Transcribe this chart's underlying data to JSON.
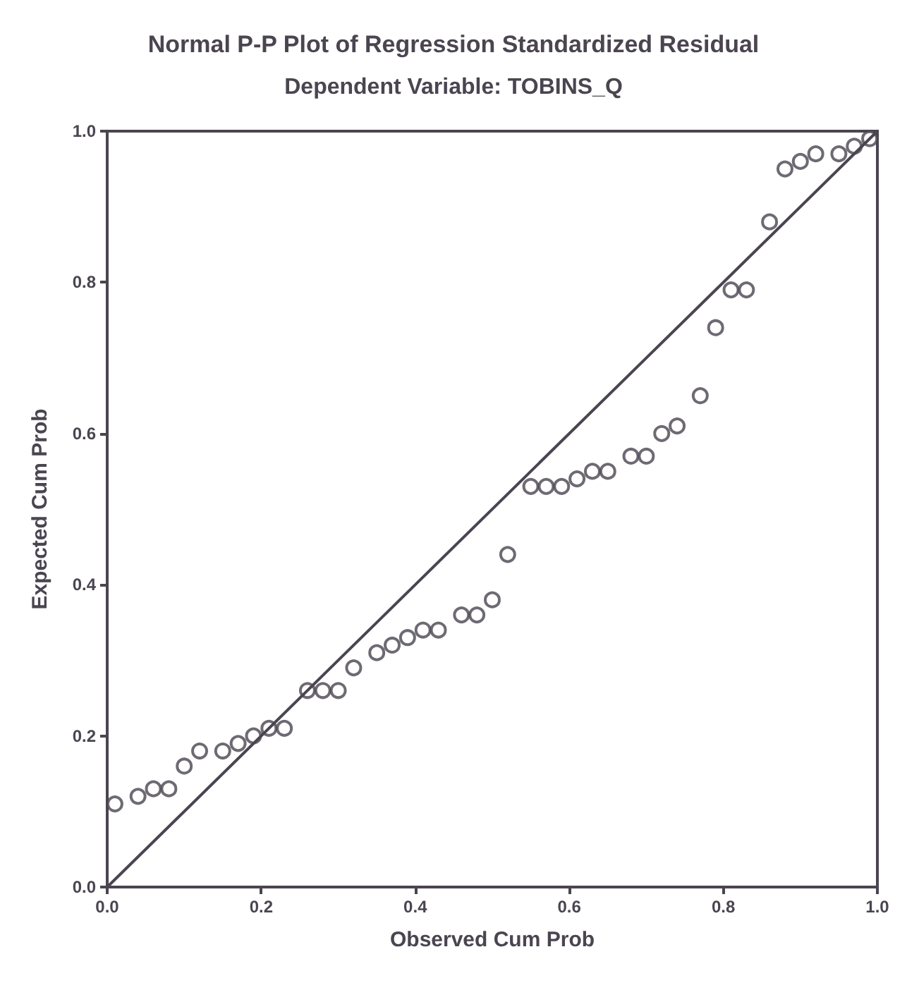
{
  "chart_data": {
    "type": "scatter",
    "title": "Normal P-P Plot of Regression Standardized Residual",
    "subtitle": "Dependent Variable: TOBINS_Q",
    "xlabel": "Observed Cum Prob",
    "ylabel": "Expected Cum Prob",
    "xlim": [
      0,
      1
    ],
    "ylim": [
      0,
      1
    ],
    "xticks": [
      {
        "value": 0,
        "label": "0.0"
      },
      {
        "value": 0.2,
        "label": "0.2"
      },
      {
        "value": 0.4,
        "label": "0.4"
      },
      {
        "value": 0.6,
        "label": "0.6"
      },
      {
        "value": 0.8,
        "label": "0.8"
      },
      {
        "value": 1,
        "label": "1.0"
      }
    ],
    "yticks": [
      {
        "value": 0,
        "label": "0.0"
      },
      {
        "value": 0.2,
        "label": "0.2"
      },
      {
        "value": 0.4,
        "label": "0.4"
      },
      {
        "value": 0.6,
        "label": "0.6"
      },
      {
        "value": 0.8,
        "label": "0.8"
      },
      {
        "value": 1,
        "label": "1.0"
      }
    ],
    "grid": false,
    "series": [
      {
        "marker": "circle",
        "color": "#4a4550",
        "x": [
          0.01,
          0.04,
          0.06,
          0.08,
          0.1,
          0.12,
          0.15,
          0.17,
          0.19,
          0.21,
          0.23,
          0.26,
          0.28,
          0.3,
          0.32,
          0.35,
          0.37,
          0.39,
          0.41,
          0.43,
          0.46,
          0.48,
          0.5,
          0.52,
          0.55,
          0.57,
          0.59,
          0.61,
          0.63,
          0.65,
          0.68,
          0.7,
          0.72,
          0.74,
          0.77,
          0.79,
          0.81,
          0.83,
          0.86,
          0.88,
          0.9,
          0.92,
          0.95,
          0.97,
          0.99
        ],
        "values": [
          0.11,
          0.12,
          0.13,
          0.13,
          0.16,
          0.18,
          0.18,
          0.19,
          0.2,
          0.21,
          0.21,
          0.26,
          0.26,
          0.26,
          0.29,
          0.31,
          0.32,
          0.33,
          0.34,
          0.34,
          0.36,
          0.36,
          0.38,
          0.44,
          0.53,
          0.53,
          0.53,
          0.54,
          0.55,
          0.55,
          0.57,
          0.57,
          0.6,
          0.61,
          0.65,
          0.74,
          0.79,
          0.79,
          0.88,
          0.95,
          0.96,
          0.97,
          0.97,
          0.98,
          0.99
        ]
      },
      {
        "type": "line",
        "color": "#4a4550",
        "line_style": "solid",
        "x": [
          0,
          1
        ],
        "values": [
          0,
          1
        ]
      }
    ]
  }
}
